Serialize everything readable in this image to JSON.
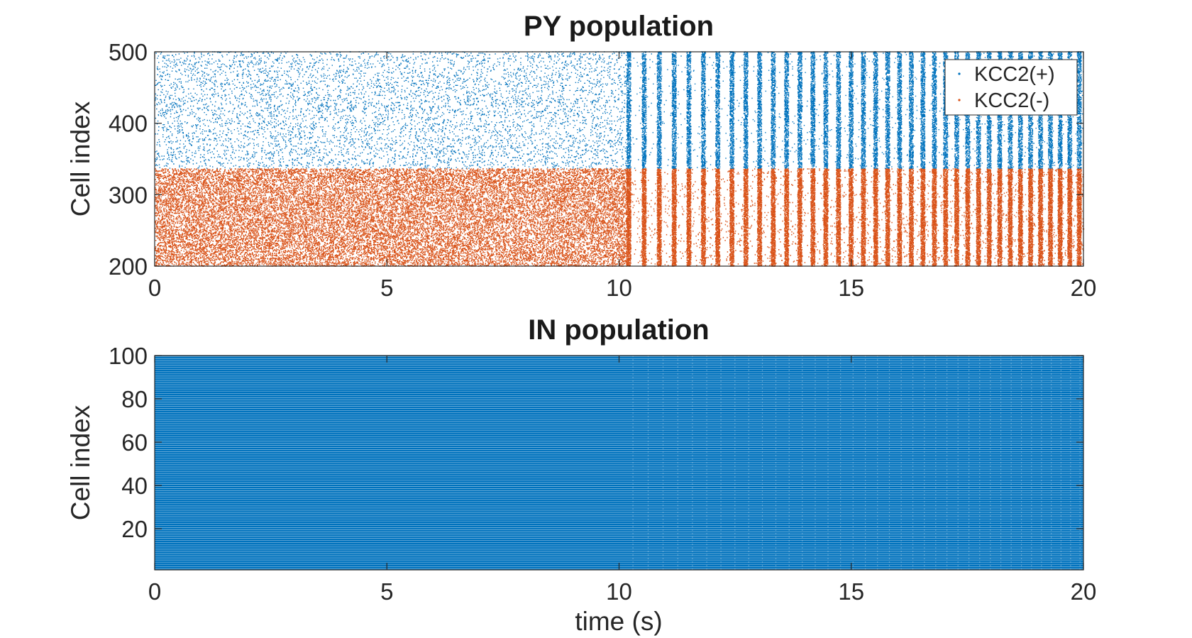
{
  "chart_data": [
    {
      "type": "scatter",
      "subtype": "raster",
      "title": "PY population",
      "xlabel": "",
      "ylabel": "Cell index",
      "xlim": [
        0,
        20
      ],
      "ylim": [
        200,
        500
      ],
      "x_ticks": [
        "0",
        "5",
        "10",
        "15",
        "20"
      ],
      "y_ticks": [
        "200",
        "300",
        "400",
        "500"
      ],
      "grid": false,
      "legend": "top-right",
      "series": [
        {
          "name": "KCC2(+)",
          "color": "#0072BD",
          "cell_range": [
            337,
            500
          ],
          "description_regime": "sparse asynchronous spiking before t=10 s, rhythmic bursting after t=10 s",
          "burst_onset_s": 10.2,
          "burst_period_s_at_10": 0.33,
          "burst_period_s_at_20": 0.2
        },
        {
          "name": "KCC2(-)",
          "color": "#D95319",
          "cell_range": [
            200,
            336
          ],
          "description_regime": "dense asynchronous spiking before t=10 s, rhythmic bursting after t=10 s",
          "burst_onset_s": 10.2,
          "burst_period_s_at_10": 0.33,
          "burst_period_s_at_20": 0.2
        }
      ]
    },
    {
      "type": "scatter",
      "subtype": "raster",
      "title": "IN population",
      "xlabel": "time (s)",
      "ylabel": "Cell index",
      "xlim": [
        0,
        20
      ],
      "ylim": [
        1,
        100
      ],
      "x_ticks": [
        "0",
        "5",
        "10",
        "15",
        "20"
      ],
      "y_ticks": [
        "20",
        "40",
        "60",
        "80",
        "100"
      ],
      "grid": false,
      "series": [
        {
          "color": "#0072BD",
          "cell_range": [
            1,
            100
          ],
          "description_regime": "dense near-continuous firing, faint vertical gaps after t=10 s"
        }
      ]
    }
  ]
}
